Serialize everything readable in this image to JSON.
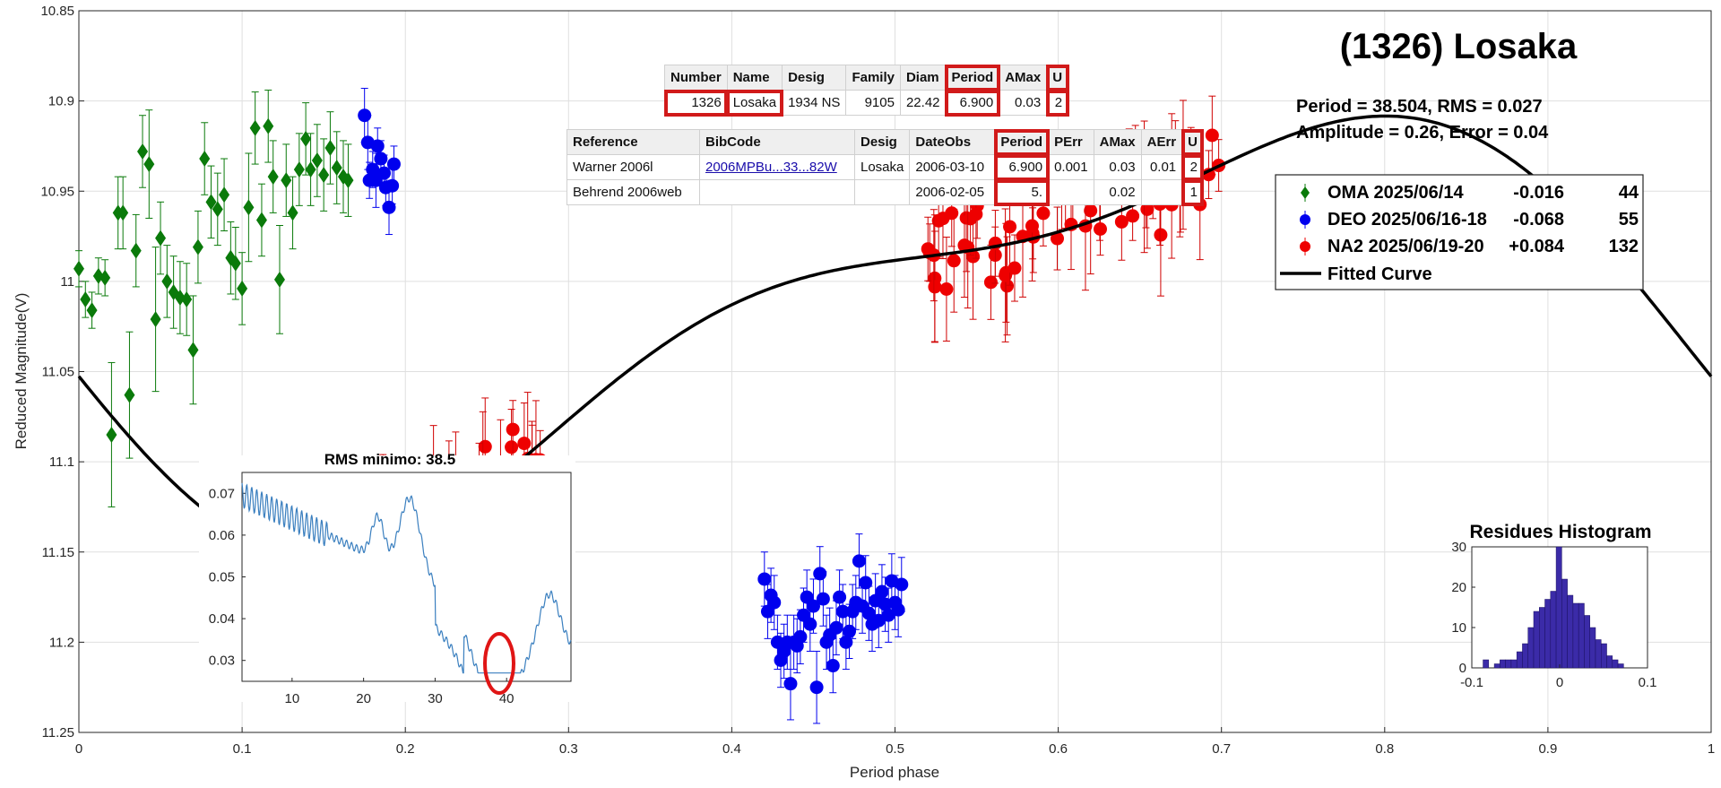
{
  "page": {
    "title": "(1326) Losaka",
    "stats_line1": "Period =  38.504, RMS = 0.027",
    "stats_line2": "Amplitude = 0.26, Error = 0.04"
  },
  "legend": {
    "entries": [
      {
        "label": "OMA 2025/06/14",
        "offset": "-0.016",
        "count": "44",
        "color": "#0a7a0a",
        "marker": "diamond"
      },
      {
        "label": "DEO 2025/06/16-18",
        "offset": "-0.068",
        "count": "55",
        "color": "#0000ee",
        "marker": "circle"
      },
      {
        "label": "NA2 2025/06/19-20",
        "offset": "+0.084",
        "count": "132",
        "color": "#ee0000",
        "marker": "circle"
      },
      {
        "label": "Fitted Curve",
        "offset": "",
        "count": "",
        "color": "#000000",
        "marker": "line"
      }
    ]
  },
  "table1": {
    "headers": [
      "Number",
      "Name",
      "Desig",
      "Family",
      "Diam",
      "Period",
      "AMax",
      "U"
    ],
    "row": [
      "1326",
      "Losaka",
      "1934 NS",
      "9105",
      "22.42",
      "6.900",
      "0.03",
      "2"
    ]
  },
  "table2": {
    "headers": [
      "Reference",
      "BibCode",
      "Desig",
      "DateObs",
      "Period",
      "PErr",
      "AMax",
      "AErr",
      "U"
    ],
    "rows": [
      [
        "Warner 2006l",
        "2006MPBu...33...82W",
        "Losaka",
        "2006-03-10",
        "6.900",
        "0.001",
        "0.03",
        "0.01",
        "2"
      ],
      [
        "Behrend 2006web",
        "",
        "",
        "2006-02-05",
        "5.",
        "",
        "0.02",
        "",
        "1"
      ]
    ]
  },
  "chart_data": [
    {
      "type": "scatter",
      "title": "",
      "xlabel": "Period phase",
      "ylabel": "Reduced Magnitude(V)",
      "xlim": [
        0,
        1
      ],
      "ylim": [
        11.25,
        10.85
      ],
      "y_reversed": true,
      "grid": true,
      "xticks": [
        "0",
        "0.1",
        "0.2",
        "0.3",
        "0.4",
        "0.5",
        "0.6",
        "0.7",
        "0.8",
        "0.9",
        "1"
      ],
      "yticks": [
        "10.85",
        "10.9",
        "10.95",
        "11",
        "11.05",
        "11.1",
        "11.15",
        "11.2",
        "11.25"
      ],
      "legend_position": "top-right",
      "series": [
        {
          "name": "OMA 2025/06/14",
          "color": "#0a7a0a",
          "marker": "diamond",
          "x": [
            0.0,
            0.004,
            0.008,
            0.012,
            0.016,
            0.02,
            0.024,
            0.027,
            0.031,
            0.035,
            0.039,
            0.043,
            0.047,
            0.05,
            0.054,
            0.058,
            0.062,
            0.066,
            0.07,
            0.073,
            0.077,
            0.081,
            0.085,
            0.089,
            0.093,
            0.096,
            0.1,
            0.104,
            0.108,
            0.112,
            0.116,
            0.119,
            0.123,
            0.127,
            0.131,
            0.135,
            0.139,
            0.142,
            0.146,
            0.15,
            0.154,
            0.158,
            0.162,
            0.165
          ],
          "y": [
            10.993,
            11.01,
            11.016,
            10.997,
            10.998,
            11.085,
            10.962,
            10.962,
            11.063,
            10.983,
            10.928,
            10.935,
            11.021,
            10.976,
            11.0,
            11.006,
            11.009,
            11.01,
            11.038,
            10.981,
            10.932,
            10.956,
            10.96,
            10.952,
            10.987,
            10.99,
            11.004,
            10.959,
            10.915,
            10.966,
            10.914,
            10.942,
            10.999,
            10.944,
            10.962,
            10.938,
            10.921,
            10.938,
            10.933,
            10.941,
            10.926,
            10.937,
            10.942,
            10.944
          ],
          "err": [
            0.01,
            0.01,
            0.01,
            0.01,
            0.01,
            0.04,
            0.02,
            0.02,
            0.035,
            0.02,
            0.02,
            0.03,
            0.04,
            0.02,
            0.02,
            0.02,
            0.02,
            0.02,
            0.03,
            0.02,
            0.02,
            0.02,
            0.02,
            0.02,
            0.02,
            0.02,
            0.02,
            0.03,
            0.02,
            0.02,
            0.02,
            0.02,
            0.03,
            0.02,
            0.02,
            0.02,
            0.02,
            0.02,
            0.02,
            0.02,
            0.02,
            0.02,
            0.02,
            0.02
          ]
        },
        {
          "name": "DEO 2025/06/16-18",
          "color": "#0000ee",
          "marker": "circle",
          "x": [
            0.175,
            0.177,
            0.178,
            0.18,
            0.182,
            0.183,
            0.185,
            0.187,
            0.188,
            0.19,
            0.192,
            0.193,
            0.42,
            0.422,
            0.424,
            0.426,
            0.428,
            0.43,
            0.432,
            0.434,
            0.436,
            0.438,
            0.44,
            0.442,
            0.444,
            0.446,
            0.448,
            0.45,
            0.452,
            0.454,
            0.456,
            0.458,
            0.46,
            0.462,
            0.464,
            0.466,
            0.468,
            0.47,
            0.472,
            0.474,
            0.476,
            0.478,
            0.48,
            0.482,
            0.484,
            0.486,
            0.488,
            0.49,
            0.492,
            0.494,
            0.496,
            0.498,
            0.5,
            0.502,
            0.504
          ],
          "y": [
            10.908,
            10.923,
            10.944,
            10.938,
            10.944,
            10.925,
            10.932,
            10.94,
            10.948,
            10.959,
            10.947,
            10.935,
            11.165,
            11.183,
            11.174,
            11.178,
            11.2,
            11.21,
            11.205,
            11.2,
            11.223,
            11.2,
            11.202,
            11.197,
            11.185,
            11.175,
            11.19,
            11.18,
            11.225,
            11.162,
            11.176,
            11.2,
            11.196,
            11.213,
            11.192,
            11.175,
            11.183,
            11.2,
            11.194,
            11.183,
            11.178,
            11.155,
            11.18,
            11.167,
            11.184,
            11.19,
            11.177,
            11.188,
            11.172,
            11.179,
            11.185,
            11.166,
            11.178,
            11.182,
            11.168
          ],
          "err": [
            0.015,
            0.015,
            0.01,
            0.01,
            0.015,
            0.01,
            0.01,
            0.01,
            0.01,
            0.015,
            0.01,
            0.01,
            0.015,
            0.015,
            0.015,
            0.015,
            0.015,
            0.015,
            0.015,
            0.015,
            0.02,
            0.015,
            0.015,
            0.015,
            0.015,
            0.015,
            0.015,
            0.015,
            0.02,
            0.015,
            0.015,
            0.015,
            0.015,
            0.015,
            0.015,
            0.015,
            0.015,
            0.015,
            0.015,
            0.015,
            0.015,
            0.015,
            0.015,
            0.015,
            0.015,
            0.015,
            0.015,
            0.015,
            0.015,
            0.015,
            0.015,
            0.015,
            0.015,
            0.015,
            0.015
          ]
        }
      ]
    },
    {
      "type": "line",
      "title": "RMS minimo: 38.5",
      "xlabel": "",
      "ylabel": "",
      "xlim": [
        3,
        49
      ],
      "ylim": [
        0.025,
        0.075
      ],
      "xticks": [
        "10",
        "20",
        "30",
        "40"
      ],
      "yticks": [
        "0.03",
        "0.04",
        "0.05",
        "0.06",
        "0.07"
      ],
      "series": [
        {
          "color": "#3a7fbf"
        }
      ]
    },
    {
      "type": "bar",
      "title": "Residues Histogram",
      "xlabel": "",
      "ylabel": "",
      "xlim": [
        -0.1,
        0.1
      ],
      "ylim": [
        0,
        30
      ],
      "xticks": [
        "-0.1",
        "0",
        "0.1"
      ],
      "yticks": [
        "0",
        "10",
        "20",
        "30"
      ],
      "color": "#3b2ba8",
      "bin_width": 0.0064,
      "bin_centers": [
        -0.084,
        -0.0776,
        -0.0712,
        -0.0648,
        -0.0584,
        -0.052,
        -0.0456,
        -0.0392,
        -0.0328,
        -0.0264,
        -0.02,
        -0.0136,
        -0.0072,
        -0.0008,
        0.0056,
        0.012,
        0.0184,
        0.0248,
        0.0312,
        0.0376,
        0.044,
        0.0504,
        0.0568,
        0.0632,
        0.0696,
        0.076
      ],
      "values": [
        2,
        0,
        1,
        2,
        2,
        2,
        4,
        6,
        10,
        14,
        15,
        17,
        19,
        30,
        22,
        18,
        16,
        16,
        13,
        10,
        7,
        6,
        3,
        2,
        1,
        0
      ]
    }
  ]
}
